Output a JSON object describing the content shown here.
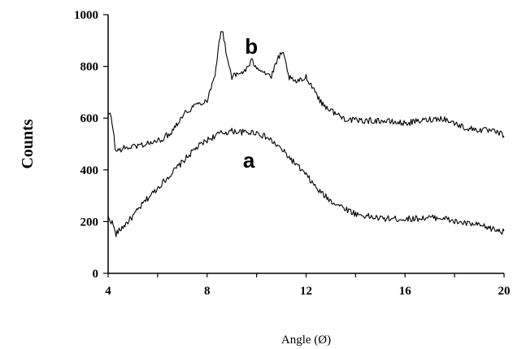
{
  "chart_data": {
    "type": "line",
    "title": "",
    "xlabel": "Angle (Ø)",
    "ylabel": "Counts",
    "xlim": [
      4,
      20
    ],
    "ylim": [
      0,
      1000
    ],
    "xticks": [
      4,
      8,
      12,
      16,
      20
    ],
    "yticks": [
      0,
      200,
      400,
      600,
      800,
      1000
    ],
    "grid": false,
    "colors": {
      "line": "#000000",
      "axis": "#000000"
    },
    "series": [
      {
        "name": "a",
        "x": [
          4.0,
          4.1,
          4.2,
          4.3,
          4.5,
          5.0,
          5.5,
          6.0,
          6.5,
          7.0,
          7.5,
          8.0,
          8.5,
          9.0,
          9.5,
          10.0,
          10.5,
          11.0,
          11.5,
          12.0,
          12.5,
          13.0,
          13.5,
          14.0,
          14.5,
          15.0,
          16.0,
          17.0,
          17.5,
          18.0,
          19.0,
          20.0
        ],
        "y": [
          215,
          205,
          190,
          150,
          170,
          220,
          280,
          330,
          380,
          430,
          480,
          515,
          540,
          550,
          545,
          545,
          520,
          480,
          430,
          380,
          320,
          280,
          255,
          230,
          220,
          212,
          210,
          215,
          215,
          200,
          185,
          160
        ]
      },
      {
        "name": "b",
        "x": [
          4.0,
          4.1,
          4.2,
          4.3,
          4.5,
          5.0,
          5.5,
          6.0,
          6.5,
          7.0,
          7.5,
          8.0,
          8.3,
          8.5,
          8.6,
          8.8,
          9.0,
          9.3,
          9.6,
          9.8,
          10.0,
          10.3,
          10.6,
          10.9,
          11.1,
          11.3,
          11.5,
          11.8,
          12.0,
          12.2,
          12.4,
          12.6,
          13.0,
          13.5,
          14.0,
          15.0,
          16.0,
          17.0,
          17.5,
          18.0,
          18.5,
          19.0,
          19.5,
          20.0
        ],
        "y": [
          615,
          610,
          560,
          470,
          480,
          490,
          500,
          510,
          540,
          610,
          650,
          670,
          760,
          900,
          945,
          840,
          760,
          770,
          790,
          820,
          800,
          780,
          760,
          840,
          845,
          760,
          740,
          745,
          760,
          730,
          700,
          660,
          630,
          600,
          590,
          590,
          580,
          595,
          600,
          580,
          560,
          555,
          550,
          535
        ]
      }
    ],
    "annotations": [
      {
        "text": "b",
        "x": 9.0,
        "y": 880
      },
      {
        "text": "a",
        "x": 8.9,
        "y": 440
      }
    ]
  }
}
